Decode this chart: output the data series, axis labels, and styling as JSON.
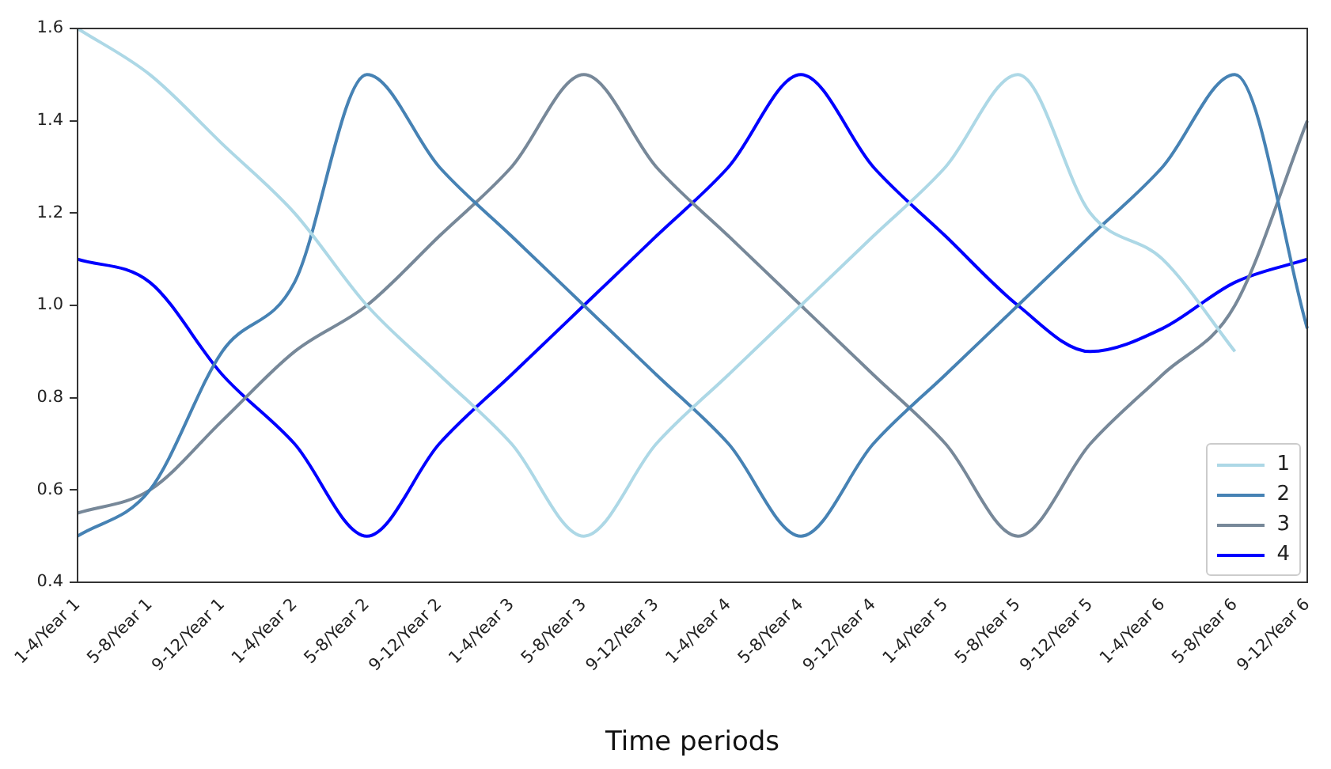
{
  "chart_data": {
    "type": "line",
    "xlabel": "Time periods",
    "categories": [
      "1-4/Year 1",
      "5-8/Year 1",
      "9-12/Year 1",
      "1-4/Year 2",
      "5-8/Year 2",
      "9-12/Year 2",
      "1-4/Year 3",
      "5-8/Year 3",
      "9-12/Year 3",
      "1-4/Year 4",
      "5-8/Year 4",
      "9-12/Year 4",
      "1-4/Year 5",
      "5-8/Year 5",
      "9-12/Year 5",
      "1-4/Year 6",
      "5-8/Year 6",
      "9-12/Year 6"
    ],
    "ylim": [
      0.4,
      1.6
    ],
    "yticks": [
      {
        "value": 0.4,
        "label": "0.4"
      },
      {
        "value": 0.6,
        "label": "0.6"
      },
      {
        "value": 0.8,
        "label": "0.8"
      },
      {
        "value": 1.0,
        "label": "1.0"
      },
      {
        "value": 1.2,
        "label": "1.2"
      },
      {
        "value": 1.4,
        "label": "1.4"
      },
      {
        "value": 1.6,
        "label": "1.6"
      }
    ],
    "series": [
      {
        "name": "1",
        "color": "#add8e6",
        "values": [
          1.6,
          1.5,
          1.35,
          1.2,
          1.0,
          0.85,
          0.7,
          0.5,
          0.7,
          0.85,
          1.0,
          1.15,
          1.3,
          1.5,
          1.2,
          1.1,
          0.9,
          null
        ]
      },
      {
        "name": "2",
        "color": "#4682b4",
        "values": [
          0.5,
          0.6,
          0.9,
          1.05,
          1.5,
          1.3,
          1.15,
          1.0,
          0.85,
          0.7,
          0.5,
          0.7,
          0.85,
          1.0,
          1.15,
          1.3,
          1.5,
          0.95
        ]
      },
      {
        "name": "3",
        "color": "#778899",
        "values": [
          0.55,
          0.6,
          0.75,
          0.9,
          1.0,
          1.15,
          1.3,
          1.5,
          1.3,
          1.15,
          1.0,
          0.85,
          0.7,
          0.5,
          0.7,
          0.85,
          1.0,
          1.4
        ]
      },
      {
        "name": "4",
        "color": "#0000ff",
        "values": [
          1.1,
          1.05,
          0.85,
          0.7,
          0.5,
          0.7,
          0.85,
          1.0,
          1.15,
          1.3,
          1.5,
          1.3,
          1.15,
          1.0,
          0.9,
          0.95,
          1.05,
          1.1
        ]
      }
    ],
    "legend": "bottom right",
    "grid": false,
    "marker": "none",
    "line_style": "solid"
  }
}
